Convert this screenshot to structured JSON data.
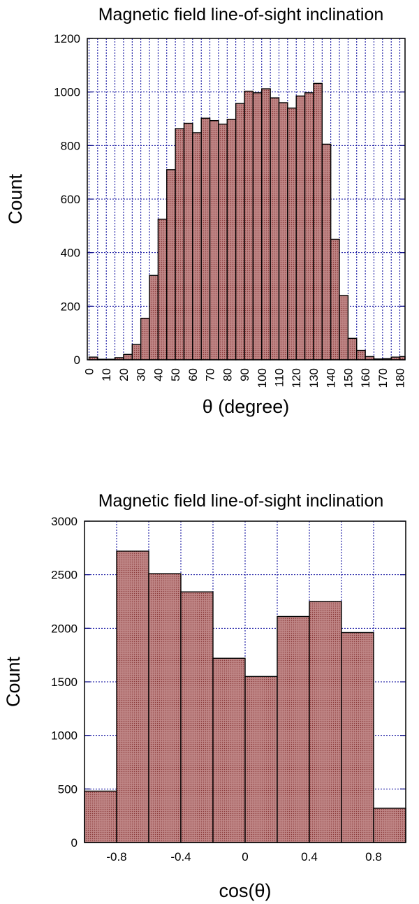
{
  "chart_data": [
    {
      "type": "bar",
      "title": "Magnetic field line-of-sight inclination",
      "xlabel": "θ (degree)",
      "ylabel": "Count",
      "x_ticks": [
        "0",
        "10",
        "20",
        "30",
        "40",
        "50",
        "60",
        "70",
        "80",
        "90",
        "100",
        "110",
        "120",
        "130",
        "140",
        "150",
        "160",
        "170",
        "180"
      ],
      "y_ticks": [
        "0",
        "200",
        "400",
        "600",
        "800",
        "1000",
        "1200"
      ],
      "xlim": [
        -1,
        183
      ],
      "ylim": [
        0,
        1200
      ],
      "bin_width": 5,
      "bin_starts": [
        0,
        5,
        10,
        15,
        20,
        25,
        30,
        35,
        40,
        45,
        50,
        55,
        60,
        65,
        70,
        75,
        80,
        85,
        90,
        95,
        100,
        105,
        110,
        115,
        120,
        125,
        130,
        135,
        140,
        145,
        150,
        155,
        160,
        165,
        170,
        175,
        180
      ],
      "values": [
        10,
        2,
        2,
        8,
        20,
        57,
        155,
        315,
        525,
        710,
        863,
        883,
        848,
        902,
        893,
        880,
        898,
        957,
        1003,
        997,
        1012,
        978,
        960,
        940,
        985,
        997,
        1032,
        805,
        450,
        240,
        80,
        35,
        12,
        3,
        4,
        10,
        12
      ],
      "grid": true,
      "bar_color": "#ab6868"
    },
    {
      "type": "bar",
      "title": "Magnetic field line-of-sight inclination",
      "xlabel": "cos(θ)",
      "ylabel": "Count",
      "x_ticks": [
        "-0.8",
        "-0.4",
        "0",
        "0.4",
        "0.8"
      ],
      "x_tick_values": [
        -0.8,
        -0.4,
        0,
        0.4,
        0.8
      ],
      "y_ticks": [
        "0",
        "500",
        "1000",
        "1500",
        "2000",
        "2500",
        "3000"
      ],
      "xlim": [
        -1,
        1
      ],
      "ylim": [
        0,
        3000
      ],
      "bin_width": 0.2,
      "bin_starts": [
        -1.0,
        -0.8,
        -0.6,
        -0.4,
        -0.2,
        0.0,
        0.2,
        0.4,
        0.6,
        0.8
      ],
      "values": [
        480,
        2720,
        2510,
        2340,
        1720,
        1550,
        2110,
        2250,
        1960,
        320
      ],
      "grid": true,
      "bar_color": "#ab6868"
    }
  ]
}
